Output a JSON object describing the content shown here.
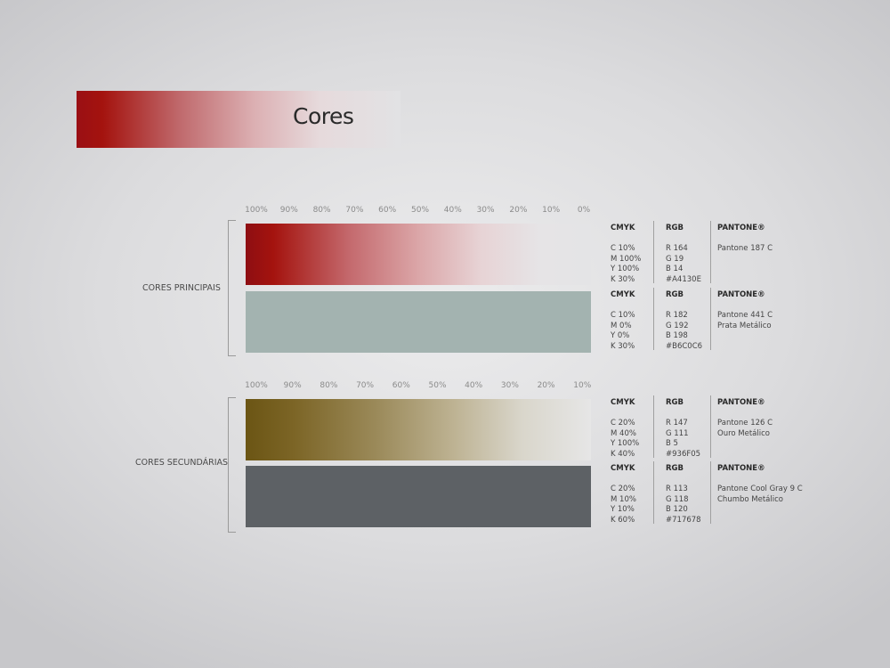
{
  "title": "Cores",
  "percent_scale_1": [
    "100%",
    "90%",
    "80%",
    "70%",
    "60%",
    "50%",
    "40%",
    "30%",
    "20%",
    "10%",
    "0%"
  ],
  "percent_scale_2": [
    "100%",
    "90%",
    "80%",
    "70%",
    "60%",
    "50%",
    "40%",
    "30%",
    "20%",
    "10%"
  ],
  "groups": {
    "primary": "CORES PRINCIPAIS",
    "secondary": "CORES SECUNDÁRIAS"
  },
  "headers": {
    "cmyk": "CMYK",
    "rgb": "RGB",
    "pantone": "PANTONE®"
  },
  "colors": [
    {
      "swatch": "#A4130E",
      "cmyk": [
        "C   10%",
        "M   100%",
        "Y   100%",
        "K   30%"
      ],
      "rgb": [
        "R   164",
        "G   19",
        "B   14",
        "#A4130E"
      ],
      "pantone": [
        "Pantone 187 C"
      ]
    },
    {
      "swatch": "#B6C0C6",
      "cmyk": [
        "C   10%",
        "M   0%",
        "Y   0%",
        "K   30%"
      ],
      "rgb": [
        "R   182",
        "G   192",
        "B   198",
        "#B6C0C6"
      ],
      "pantone": [
        "Pantone 441 C",
        "Prata Metálico"
      ]
    },
    {
      "swatch": "#936F05",
      "cmyk": [
        "C   20%",
        "M   40%",
        "Y   100%",
        "K   40%"
      ],
      "rgb": [
        "R   147",
        "G   111",
        "B   5",
        "#936F05"
      ],
      "pantone": [
        "Pantone 126 C",
        "Ouro Metálico"
      ]
    },
    {
      "swatch": "#717678",
      "cmyk": [
        "C   20%",
        "M   10%",
        "Y   10%",
        "K   60%"
      ],
      "rgb": [
        "R   113",
        "G   118",
        "B   120",
        "#717678"
      ],
      "pantone": [
        "Pantone Cool Gray 9 C",
        "Chumbo Metálico"
      ]
    }
  ]
}
